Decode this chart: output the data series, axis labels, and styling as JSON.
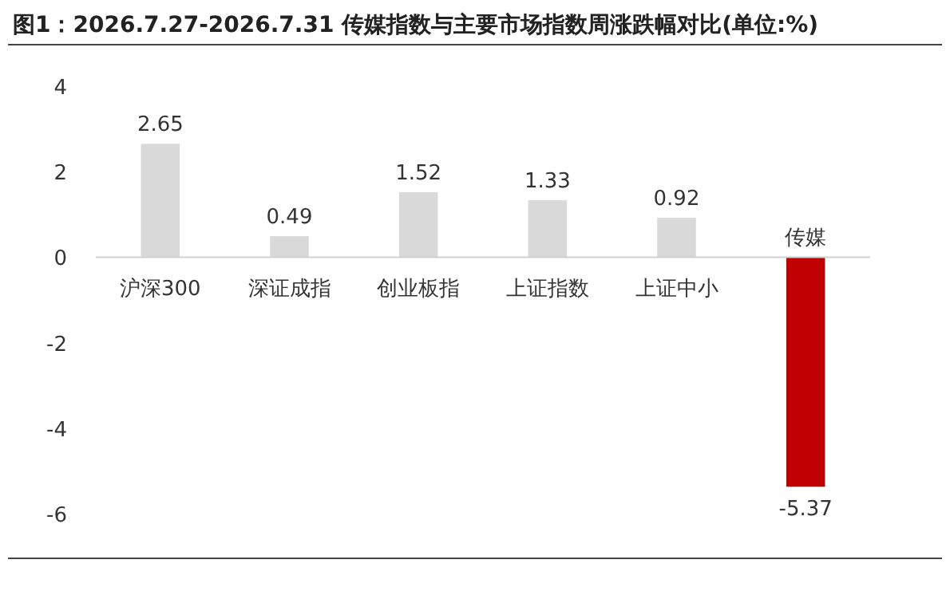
{
  "chart_data": {
    "type": "bar",
    "title": "图1：2026.7.27-2026.7.31 传媒指数与主要市场指数周涨跌幅对比(单位:%)",
    "categories": [
      "沪深300",
      "深证成指",
      "创业板指",
      "上证指数",
      "上证中小",
      "传媒"
    ],
    "values": [
      2.65,
      0.49,
      1.52,
      1.33,
      0.92,
      -5.37
    ],
    "colors": [
      "#d9d9d9",
      "#d9d9d9",
      "#d9d9d9",
      "#d9d9d9",
      "#d9d9d9",
      "#c00000"
    ],
    "ylim": [
      -6,
      4
    ],
    "yticks": [
      -6,
      -4,
      -2,
      0,
      2,
      4
    ],
    "grid": false,
    "data_labels": true
  }
}
